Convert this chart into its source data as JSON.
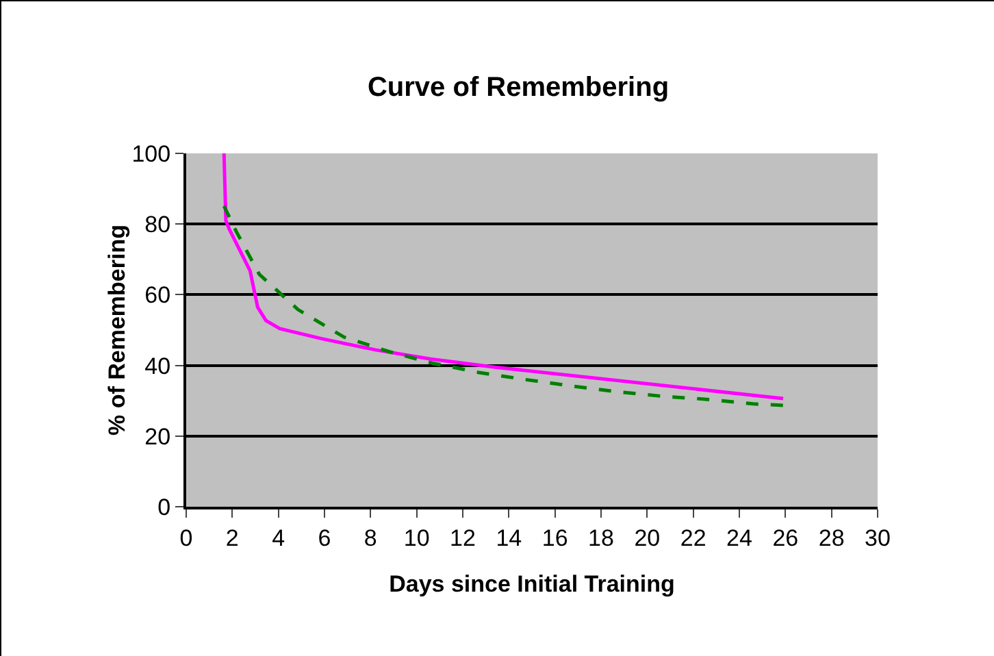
{
  "chart_data": {
    "type": "line",
    "title": "Curve of Remembering",
    "xlabel": "Days since Initial Training",
    "ylabel": "% of Remembering",
    "xlim": [
      0,
      30
    ],
    "xticks": [
      0,
      2,
      4,
      6,
      8,
      10,
      12,
      14,
      16,
      18,
      20,
      22,
      24,
      26,
      28,
      30
    ],
    "ylim": [
      0,
      100
    ],
    "yticks": [
      0,
      20,
      40,
      60,
      80,
      100
    ],
    "grid": "y",
    "marker": "none",
    "series": [
      {
        "color": "#ff00ff",
        "line_style": "solid",
        "x": [
          1.64,
          1.72,
          1.88,
          2.77,
          3.1,
          3.46,
          4.06,
          5.85,
          8.2,
          10.6,
          13.4,
          25.9
        ],
        "values": [
          100,
          81,
          78.4,
          66.8,
          56.5,
          52.7,
          50.4,
          47.6,
          44.4,
          41.8,
          39.5,
          30.6
        ]
      },
      {
        "color": "#008000",
        "line_style": "dashed",
        "x": [
          1.64,
          2.18,
          3.17,
          4.85,
          6.85,
          8.8,
          10.7,
          12.7,
          14.7,
          16.7,
          18.6,
          20.6,
          22.6,
          24.6,
          25.9
        ],
        "values": [
          85.1,
          77.8,
          65.8,
          55.8,
          48,
          43.9,
          40.6,
          38,
          36,
          34.2,
          32.6,
          31.3,
          30.4,
          29.1,
          28.7
        ]
      }
    ]
  }
}
